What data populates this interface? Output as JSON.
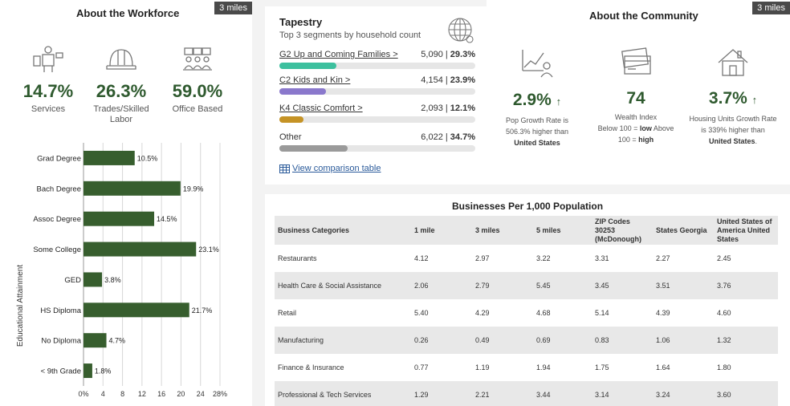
{
  "workforce": {
    "title": "About the Workforce",
    "badge": "3 miles",
    "stats": [
      {
        "icon": "services-worker-icon",
        "value": "14.7%",
        "label": "Services"
      },
      {
        "icon": "hard-hat-icon",
        "value": "26.3%",
        "label": "Trades/Skilled Labor"
      },
      {
        "icon": "office-team-icon",
        "value": "59.0%",
        "label": "Office Based"
      }
    ]
  },
  "chart_data": {
    "type": "bar",
    "orientation": "horizontal",
    "categories": [
      "Grad Degree",
      "Bach Degree",
      "Assoc Degree",
      "Some College",
      "GED",
      "HS Diploma",
      "No Diploma",
      "< 9th Grade"
    ],
    "values": [
      10.5,
      19.9,
      14.5,
      23.1,
      3.8,
      21.7,
      4.7,
      1.8
    ],
    "value_labels": [
      "10.5%",
      "19.9%",
      "14.5%",
      "23.1%",
      "3.8%",
      "21.7%",
      "4.7%",
      "1.8%"
    ],
    "ylabel": "Educational Attainment",
    "xlim": [
      0,
      28
    ],
    "xticks": [
      0,
      4,
      8,
      12,
      16,
      20,
      24,
      28
    ],
    "xtick_labels": [
      "0%",
      "4",
      "8",
      "12",
      "16",
      "20",
      "24",
      "28%"
    ],
    "bar_color": "#375e2e",
    "grid": true
  },
  "tapestry": {
    "title": "Tapestry",
    "subtitle": "Top 3 segments by household count",
    "segments": [
      {
        "name": "G2 Up and Coming Families >",
        "count": "5,090",
        "sep": "|",
        "pct": "29.3%",
        "share": 29.3,
        "color": "#3cc09e",
        "linked": true
      },
      {
        "name": "C2 Kids and Kin >",
        "count": "4,154",
        "sep": "|",
        "pct": "23.9%",
        "share": 23.9,
        "color": "#8a78cc",
        "linked": true
      },
      {
        "name": "K4 Classic Comfort >",
        "count": "2,093",
        "sep": "|",
        "pct": "12.1%",
        "share": 12.1,
        "color": "#c59325",
        "linked": true
      },
      {
        "name": "Other",
        "count": "6,022",
        "sep": "|",
        "pct": "34.7%",
        "share": 34.7,
        "color": "#9a9a9a",
        "linked": false
      }
    ],
    "link": "View comparison table"
  },
  "community": {
    "title": "About the Community",
    "badge": "3 miles",
    "pop": {
      "value": "2.9%",
      "arrow": "↑",
      "desc_pre": "Pop Growth Rate is 506.3% higher than",
      "desc_bold": "United States"
    },
    "wealth": {
      "value": "74",
      "label": "Wealth Index",
      "desc1": "Below 100 =",
      "low": "low",
      "desc2": "Above 100 =",
      "high": "high"
    },
    "housing": {
      "value": "3.7%",
      "arrow": "↑",
      "desc_pre": "Housing Units Growth Rate is 339% higher than",
      "desc_bold": "United States",
      "desc_end": "."
    }
  },
  "businesses": {
    "title": "Businesses Per 1,000 Population",
    "headers": [
      "Business Categories",
      "1 mile",
      "3 miles",
      "5 miles",
      "ZIP Codes 30253 (McDonough)",
      "States Georgia",
      "United States of America United States"
    ],
    "rows": [
      [
        "Restaurants",
        "4.12",
        "2.97",
        "3.22",
        "3.31",
        "2.27",
        "2.45"
      ],
      [
        "Health Care & Social Assistance",
        "2.06",
        "2.79",
        "5.45",
        "3.45",
        "3.51",
        "3.76"
      ],
      [
        "Retail",
        "5.40",
        "4.29",
        "4.68",
        "5.14",
        "4.39",
        "4.60"
      ],
      [
        "Manufacturing",
        "0.26",
        "0.49",
        "0.69",
        "0.83",
        "1.06",
        "1.32"
      ],
      [
        "Finance & Insurance",
        "0.77",
        "1.19",
        "1.94",
        "1.75",
        "1.64",
        "1.80"
      ],
      [
        "Professional & Tech Services",
        "1.29",
        "2.21",
        "3.44",
        "3.14",
        "3.24",
        "3.60"
      ]
    ]
  }
}
